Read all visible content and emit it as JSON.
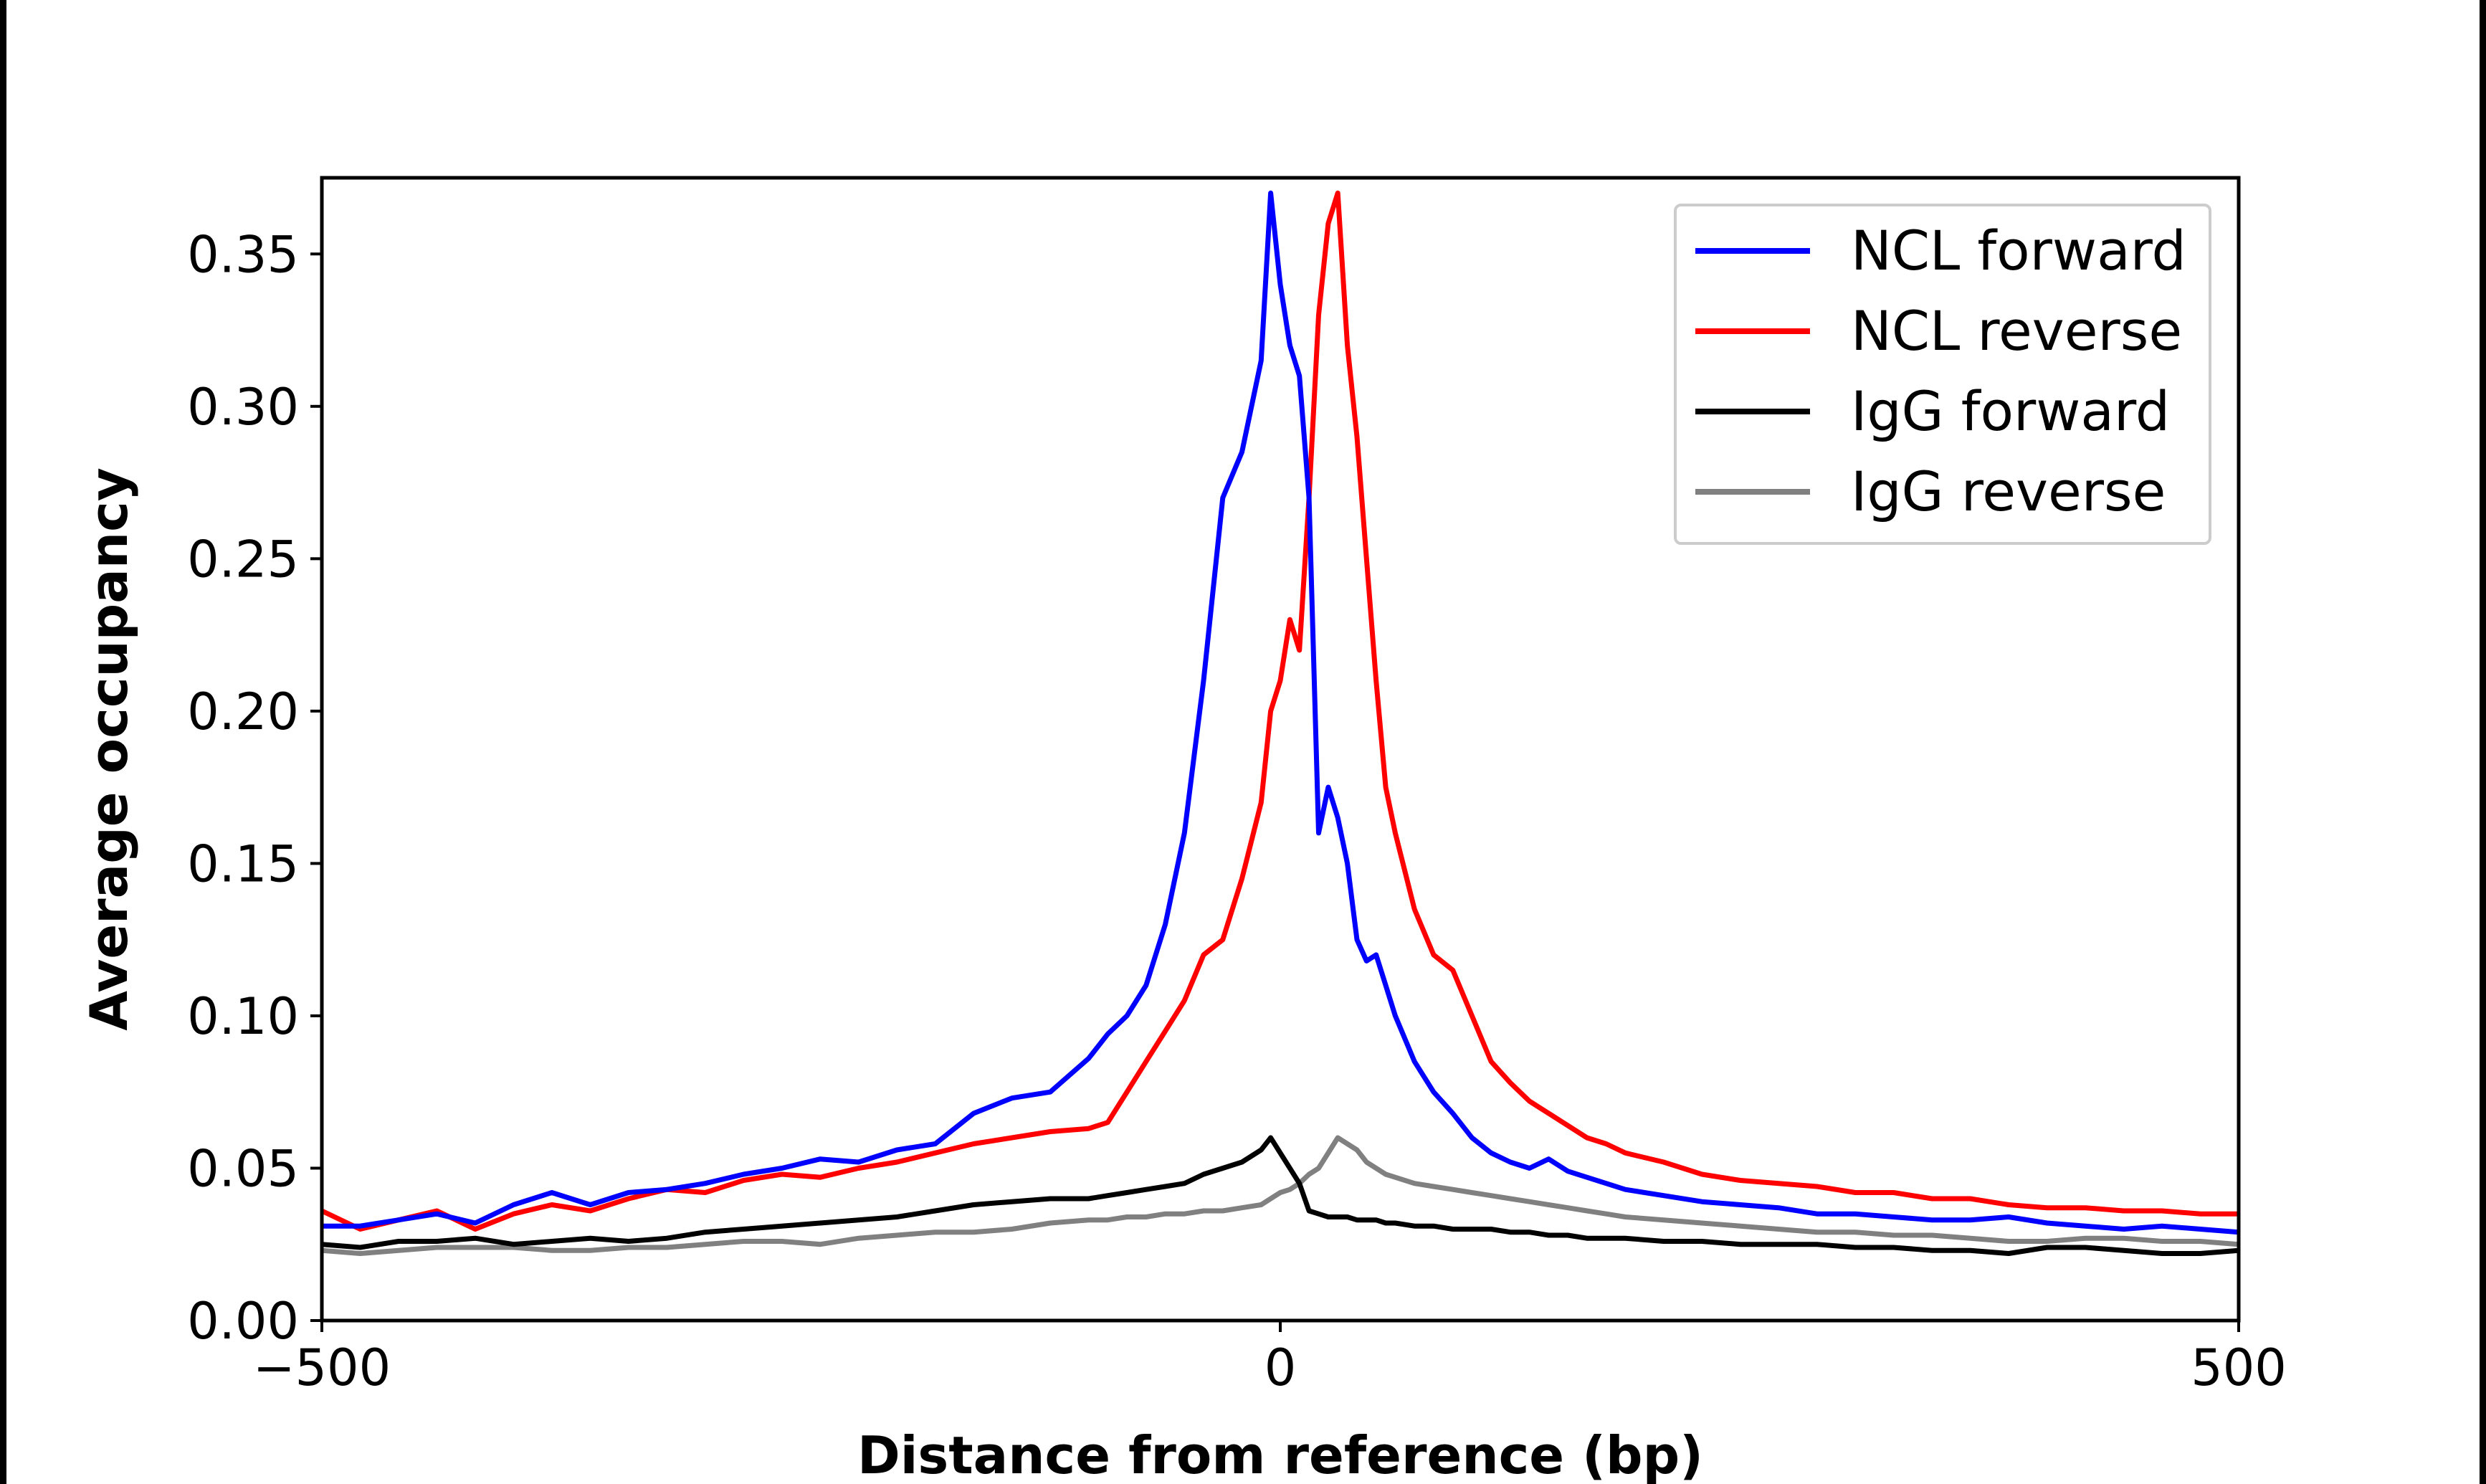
{
  "chart_data": {
    "type": "line",
    "title": "",
    "xlabel": "Distance from reference (bp)",
    "ylabel": "Average occupancy",
    "xlim": [
      -500,
      500
    ],
    "ylim": [
      0,
      0.375
    ],
    "x_ticks": [
      -500,
      0,
      500
    ],
    "x_tick_labels": [
      "−500",
      "0",
      "500"
    ],
    "y_ticks": [
      0.0,
      0.05,
      0.1,
      0.15,
      0.2,
      0.25,
      0.3,
      0.35
    ],
    "y_tick_labels": [
      "0.00",
      "0.05",
      "0.10",
      "0.15",
      "0.20",
      "0.25",
      "0.30",
      "0.35"
    ],
    "grid": false,
    "legend_position": "top-right",
    "x": [
      -500,
      -480,
      -460,
      -440,
      -420,
      -400,
      -380,
      -360,
      -340,
      -320,
      -300,
      -280,
      -260,
      -240,
      -220,
      -200,
      -180,
      -160,
      -140,
      -120,
      -100,
      -90,
      -80,
      -70,
      -60,
      -50,
      -40,
      -30,
      -20,
      -10,
      -5,
      0,
      5,
      10,
      15,
      20,
      25,
      30,
      35,
      40,
      45,
      50,
      55,
      60,
      70,
      80,
      90,
      100,
      110,
      120,
      130,
      140,
      150,
      160,
      170,
      180,
      200,
      220,
      240,
      260,
      280,
      300,
      320,
      340,
      360,
      380,
      400,
      420,
      440,
      460,
      480,
      500
    ],
    "series": [
      {
        "name": "NCL forward",
        "color": "#0000ff",
        "values": [
          0.031,
          0.031,
          0.033,
          0.035,
          0.032,
          0.038,
          0.042,
          0.038,
          0.042,
          0.043,
          0.045,
          0.048,
          0.05,
          0.053,
          0.052,
          0.056,
          0.058,
          0.068,
          0.073,
          0.075,
          0.086,
          0.094,
          0.1,
          0.11,
          0.13,
          0.16,
          0.21,
          0.27,
          0.285,
          0.315,
          0.37,
          0.34,
          0.32,
          0.31,
          0.27,
          0.16,
          0.175,
          0.165,
          0.15,
          0.125,
          0.118,
          0.12,
          0.11,
          0.1,
          0.085,
          0.075,
          0.068,
          0.06,
          0.055,
          0.052,
          0.05,
          0.053,
          0.049,
          0.047,
          0.045,
          0.043,
          0.041,
          0.039,
          0.038,
          0.037,
          0.035,
          0.035,
          0.034,
          0.033,
          0.033,
          0.034,
          0.032,
          0.031,
          0.03,
          0.031,
          0.03,
          0.029
        ]
      },
      {
        "name": "NCL reverse",
        "color": "#ff0000",
        "values": [
          0.036,
          0.03,
          0.033,
          0.036,
          0.03,
          0.035,
          0.038,
          0.036,
          0.04,
          0.043,
          0.042,
          0.046,
          0.048,
          0.047,
          0.05,
          0.052,
          0.055,
          0.058,
          0.06,
          0.062,
          0.063,
          0.065,
          0.075,
          0.085,
          0.095,
          0.105,
          0.12,
          0.125,
          0.145,
          0.17,
          0.2,
          0.21,
          0.23,
          0.22,
          0.27,
          0.33,
          0.36,
          0.37,
          0.32,
          0.29,
          0.25,
          0.21,
          0.175,
          0.16,
          0.135,
          0.12,
          0.115,
          0.1,
          0.085,
          0.078,
          0.072,
          0.068,
          0.064,
          0.06,
          0.058,
          0.055,
          0.052,
          0.048,
          0.046,
          0.045,
          0.044,
          0.042,
          0.042,
          0.04,
          0.04,
          0.038,
          0.037,
          0.037,
          0.036,
          0.036,
          0.035,
          0.035
        ]
      },
      {
        "name": "IgG forward",
        "color": "#000000",
        "values": [
          0.025,
          0.024,
          0.026,
          0.026,
          0.027,
          0.025,
          0.026,
          0.027,
          0.026,
          0.027,
          0.029,
          0.03,
          0.031,
          0.032,
          0.033,
          0.034,
          0.036,
          0.038,
          0.039,
          0.04,
          0.04,
          0.041,
          0.042,
          0.043,
          0.044,
          0.045,
          0.048,
          0.05,
          0.052,
          0.056,
          0.06,
          0.055,
          0.05,
          0.045,
          0.036,
          0.035,
          0.034,
          0.034,
          0.034,
          0.033,
          0.033,
          0.033,
          0.032,
          0.032,
          0.031,
          0.031,
          0.03,
          0.03,
          0.03,
          0.029,
          0.029,
          0.028,
          0.028,
          0.027,
          0.027,
          0.027,
          0.026,
          0.026,
          0.025,
          0.025,
          0.025,
          0.024,
          0.024,
          0.023,
          0.023,
          0.022,
          0.024,
          0.024,
          0.023,
          0.022,
          0.022,
          0.023
        ]
      },
      {
        "name": "IgG reverse",
        "color": "#808080",
        "values": [
          0.023,
          0.022,
          0.023,
          0.024,
          0.024,
          0.024,
          0.023,
          0.023,
          0.024,
          0.024,
          0.025,
          0.026,
          0.026,
          0.025,
          0.027,
          0.028,
          0.029,
          0.029,
          0.03,
          0.032,
          0.033,
          0.033,
          0.034,
          0.034,
          0.035,
          0.035,
          0.036,
          0.036,
          0.037,
          0.038,
          0.04,
          0.042,
          0.043,
          0.045,
          0.048,
          0.05,
          0.055,
          0.06,
          0.058,
          0.056,
          0.052,
          0.05,
          0.048,
          0.047,
          0.045,
          0.044,
          0.043,
          0.042,
          0.041,
          0.04,
          0.039,
          0.038,
          0.037,
          0.036,
          0.035,
          0.034,
          0.033,
          0.032,
          0.031,
          0.03,
          0.029,
          0.029,
          0.028,
          0.028,
          0.027,
          0.026,
          0.026,
          0.027,
          0.027,
          0.026,
          0.026,
          0.025
        ]
      }
    ]
  }
}
